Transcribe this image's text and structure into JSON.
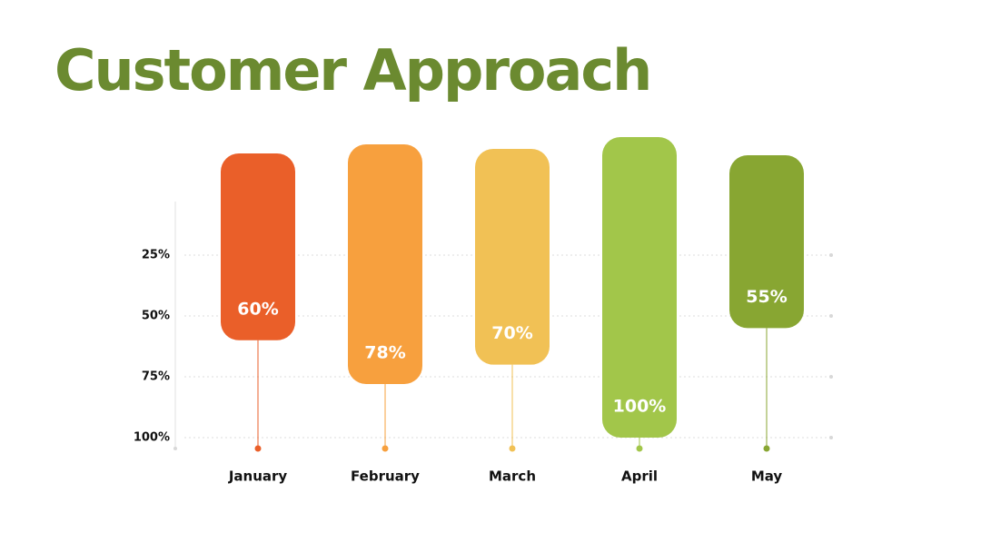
{
  "chart_data": {
    "type": "bar",
    "title": "Customer Approach",
    "categories": [
      "January",
      "February",
      "March",
      "April",
      "May"
    ],
    "values": [
      60,
      78,
      70,
      100,
      55
    ],
    "value_labels": [
      "60%",
      "78%",
      "70%",
      "100%",
      "55%"
    ],
    "colors": [
      "#ea5f29",
      "#f7a03e",
      "#f1c155",
      "#a2c64a",
      "#88a632"
    ],
    "ylim": [
      0,
      100
    ],
    "y_inverted": true,
    "yticks": [
      {
        "value": 25,
        "label": "25%"
      },
      {
        "value": 50,
        "label": "50%"
      },
      {
        "value": 75,
        "label": "75%"
      },
      {
        "value": 100,
        "label": "100%"
      }
    ],
    "grid": true
  }
}
